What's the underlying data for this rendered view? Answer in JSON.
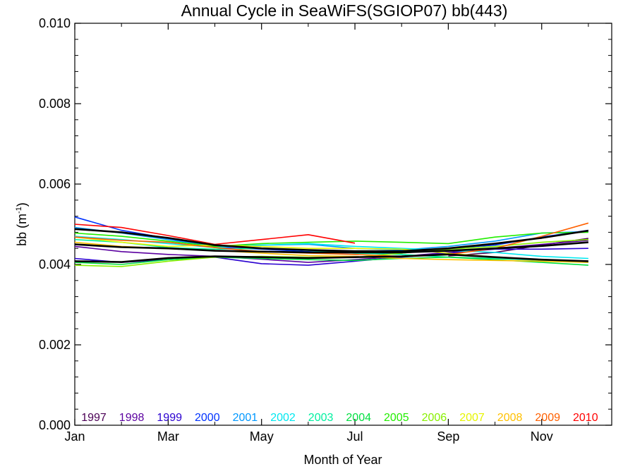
{
  "chart_data": {
    "type": "line",
    "title": "Annual Cycle in SeaWiFS(SGIOP07) bb(443)",
    "xlabel": "Month of Year",
    "ylabel": "bb (m",
    "ylabel_sup": "-1",
    "ylabel_end": ")",
    "xlim": [
      1,
      12.5
    ],
    "ylim": [
      0,
      0.01
    ],
    "x_ticks": [
      {
        "value": 1,
        "label": "Jan"
      },
      {
        "value": 3,
        "label": "Mar"
      },
      {
        "value": 5,
        "label": "May"
      },
      {
        "value": 7,
        "label": "Jul"
      },
      {
        "value": 9,
        "label": "Sep"
      },
      {
        "value": 11,
        "label": "Nov"
      }
    ],
    "y_ticks": [
      {
        "value": 0,
        "label": "0.000"
      },
      {
        "value": 0.002,
        "label": "0.002"
      },
      {
        "value": 0.004,
        "label": "0.004"
      },
      {
        "value": 0.006,
        "label": "0.006"
      },
      {
        "value": 0.008,
        "label": "0.008"
      },
      {
        "value": 0.01,
        "label": "0.010"
      }
    ],
    "legend_position": "bottom",
    "x": [
      1,
      2,
      3,
      4,
      5,
      6,
      7,
      8,
      9,
      10,
      11,
      12
    ],
    "series": [
      {
        "name": "1997",
        "color": "#4b0055",
        "values": [
          null,
          null,
          null,
          null,
          null,
          null,
          null,
          null,
          0.00421,
          0.0043,
          0.00448,
          0.00465
        ]
      },
      {
        "name": "1998",
        "color": "#5b00a0",
        "values": [
          0.00445,
          0.00432,
          0.00425,
          0.0042,
          0.00413,
          0.00405,
          0.00412,
          0.0042,
          0.0043,
          0.0044,
          0.0045,
          0.0046
        ]
      },
      {
        "name": "1999",
        "color": "#2a00d0",
        "values": [
          0.00415,
          0.00405,
          0.00412,
          0.00418,
          0.00402,
          0.00398,
          0.00408,
          0.00418,
          0.00428,
          0.00438,
          0.00438,
          0.0044
        ]
      },
      {
        "name": "2000",
        "color": "#0032ff",
        "values": [
          0.00518,
          0.00485,
          0.00465,
          0.00442,
          0.00438,
          0.00432,
          0.00428,
          0.00428,
          0.0044,
          0.00448,
          0.00468,
          0.00485
        ]
      },
      {
        "name": "2001",
        "color": "#0098ff",
        "values": [
          0.00492,
          0.00478,
          0.00462,
          0.00445,
          0.00448,
          0.0045,
          0.0044,
          0.00436,
          0.00445,
          0.00458,
          0.00478,
          0.00482
        ]
      },
      {
        "name": "2002",
        "color": "#00e8f0",
        "values": [
          0.0047,
          0.00462,
          0.00452,
          0.00442,
          0.00448,
          0.00452,
          0.00445,
          0.0044,
          0.00435,
          0.0043,
          0.0042,
          0.00415
        ]
      },
      {
        "name": "2003",
        "color": "#00f0a0",
        "values": [
          0.00462,
          0.00455,
          0.00442,
          0.00438,
          0.0044,
          0.00435,
          0.00428,
          0.00425,
          0.00418,
          0.00415,
          0.0041,
          0.00405
        ]
      },
      {
        "name": "2004",
        "color": "#00e040",
        "values": [
          0.00405,
          0.004,
          0.00412,
          0.00418,
          0.00415,
          0.00412,
          0.0041,
          0.00415,
          0.00418,
          0.00412,
          0.00405,
          0.00398
        ]
      },
      {
        "name": "2005",
        "color": "#22ee00",
        "values": [
          0.00478,
          0.0047,
          0.00458,
          0.00445,
          0.00452,
          0.00455,
          0.00458,
          0.00455,
          0.00452,
          0.00468,
          0.00478,
          0.0048
        ]
      },
      {
        "name": "2006",
        "color": "#88f000",
        "values": [
          0.00398,
          0.00395,
          0.00408,
          0.00418,
          0.0042,
          0.00418,
          0.00418,
          0.00428,
          0.00438,
          0.00445,
          0.00455,
          0.00462
        ]
      },
      {
        "name": "2007",
        "color": "#e6f500",
        "values": [
          0.00468,
          0.00455,
          0.00445,
          0.00448,
          0.00445,
          0.0044,
          0.0044,
          0.00438,
          0.00428,
          0.00418,
          0.00412,
          0.00408
        ]
      },
      {
        "name": "2008",
        "color": "#ffc000",
        "values": [
          0.00455,
          0.00445,
          0.0044,
          0.00435,
          0.00428,
          0.00422,
          0.0042,
          0.00415,
          0.00412,
          0.0041,
          0.00408,
          0.00405
        ]
      },
      {
        "name": "2009",
        "color": "#ff6000",
        "values": [
          0.00468,
          0.0046,
          0.00455,
          0.00442,
          0.00432,
          0.00428,
          0.00425,
          0.0042,
          0.00425,
          0.0044,
          0.0047,
          0.00503
        ]
      },
      {
        "name": "2010",
        "color": "#ff0000",
        "values": [
          0.005,
          0.00492,
          0.00472,
          0.0045,
          0.00462,
          0.00474,
          0.00453,
          null,
          null,
          null,
          null,
          null
        ]
      },
      {
        "name": "",
        "color": "#000000",
        "values": [
          0.00488,
          0.0048,
          0.00466,
          0.00448,
          0.0044,
          0.00436,
          0.00433,
          0.00433,
          0.0044,
          0.00452,
          0.00466,
          0.00484
        ]
      },
      {
        "name": "",
        "color": "#000000",
        "values": [
          0.00408,
          0.00406,
          0.00416,
          0.0042,
          0.00418,
          0.00416,
          0.00418,
          0.0042,
          0.00425,
          0.00418,
          0.00412,
          0.00408
        ]
      },
      {
        "name": "",
        "color": "#000000",
        "values": [
          0.0045,
          0.00443,
          0.0044,
          0.00434,
          0.00432,
          0.0043,
          0.0043,
          0.0043,
          0.00434,
          0.0044,
          0.00446,
          0.00455
        ]
      }
    ]
  }
}
